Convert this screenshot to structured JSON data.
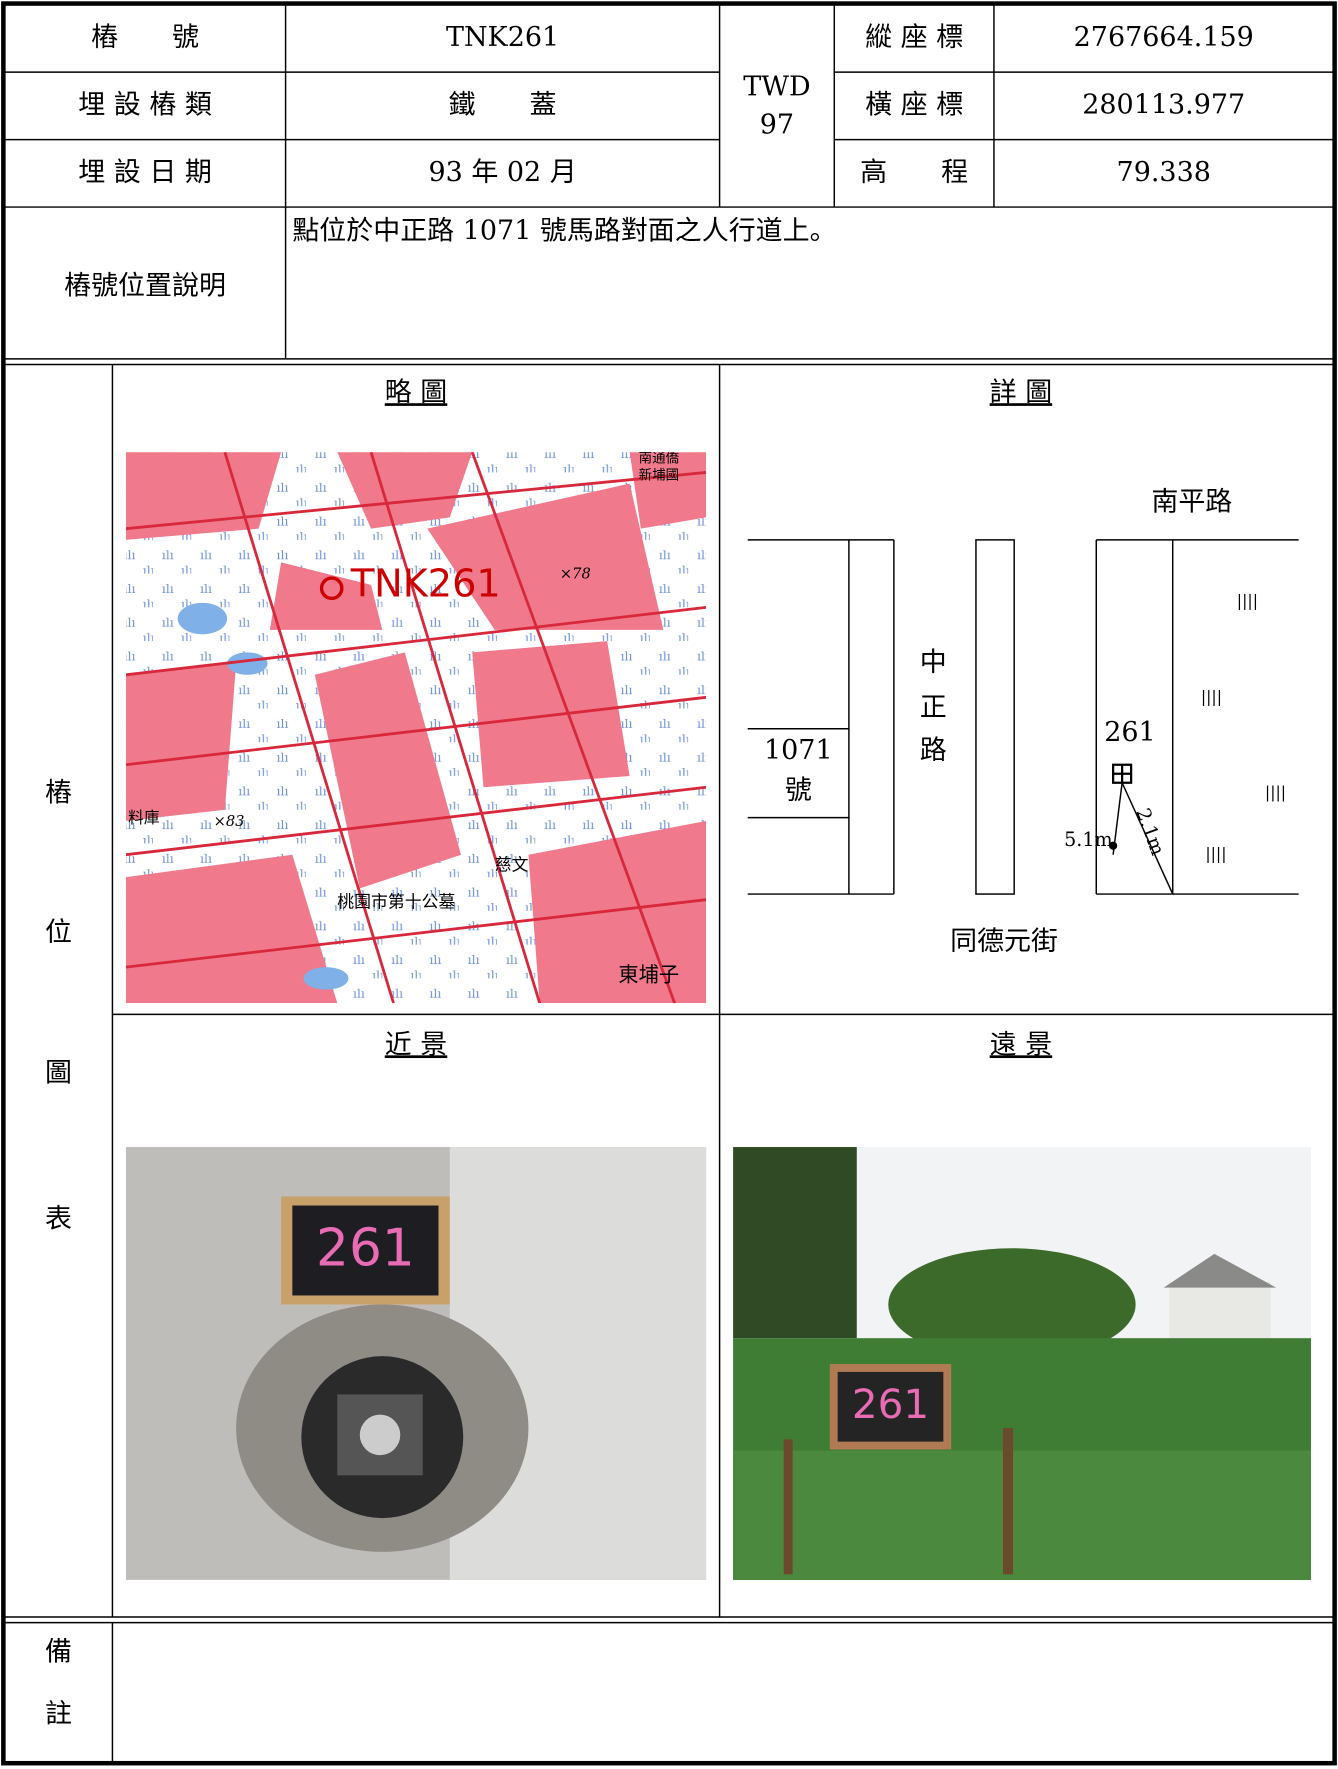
{
  "header": {
    "benchmark_label": "樁　　號",
    "benchmark_value": "TNK261",
    "type_label": "埋 設 樁 類",
    "type_value": "鐵　　蓋",
    "date_label": "埋 設 日 期",
    "date_value": "93 年 02 月",
    "datum_lines": [
      "TWD",
      "97"
    ],
    "north_label": "縱 座 標",
    "north_value": "2767664.159",
    "east_label": "橫 座 標",
    "east_value": "280113.977",
    "height_label": "高　　程",
    "height_value": "79.338",
    "description_label": "樁號位置說明",
    "description_value": "點位於中正路 1071 號馬路對面之人行道上。"
  },
  "section_label": [
    "樁",
    "位",
    "圖",
    "表"
  ],
  "panels": {
    "sketch": "略 圖",
    "detail": "詳 圖",
    "near": "近 景",
    "far": "遠 景"
  },
  "map": {
    "point_label": "TNK261",
    "spot_78": "×78",
    "spot_83": "×83",
    "place_1": "慈文",
    "place_2": "桃園市第十公墓",
    "place_3": "東埔子",
    "place_4": "料庫",
    "place_5": "南通僑",
    "place_6": "新埔國"
  },
  "detail_diagram": {
    "north_road": "南平路",
    "main_road": [
      "中",
      "正",
      "路"
    ],
    "house_no": [
      "1071",
      "號"
    ],
    "point": "261",
    "dist_1": "5.1m",
    "dist_2": "2.1m",
    "south_road": "同德元街"
  },
  "photos": {
    "near_board": "261",
    "far_board": "261"
  },
  "remarks_label": [
    "備",
    "註"
  ]
}
